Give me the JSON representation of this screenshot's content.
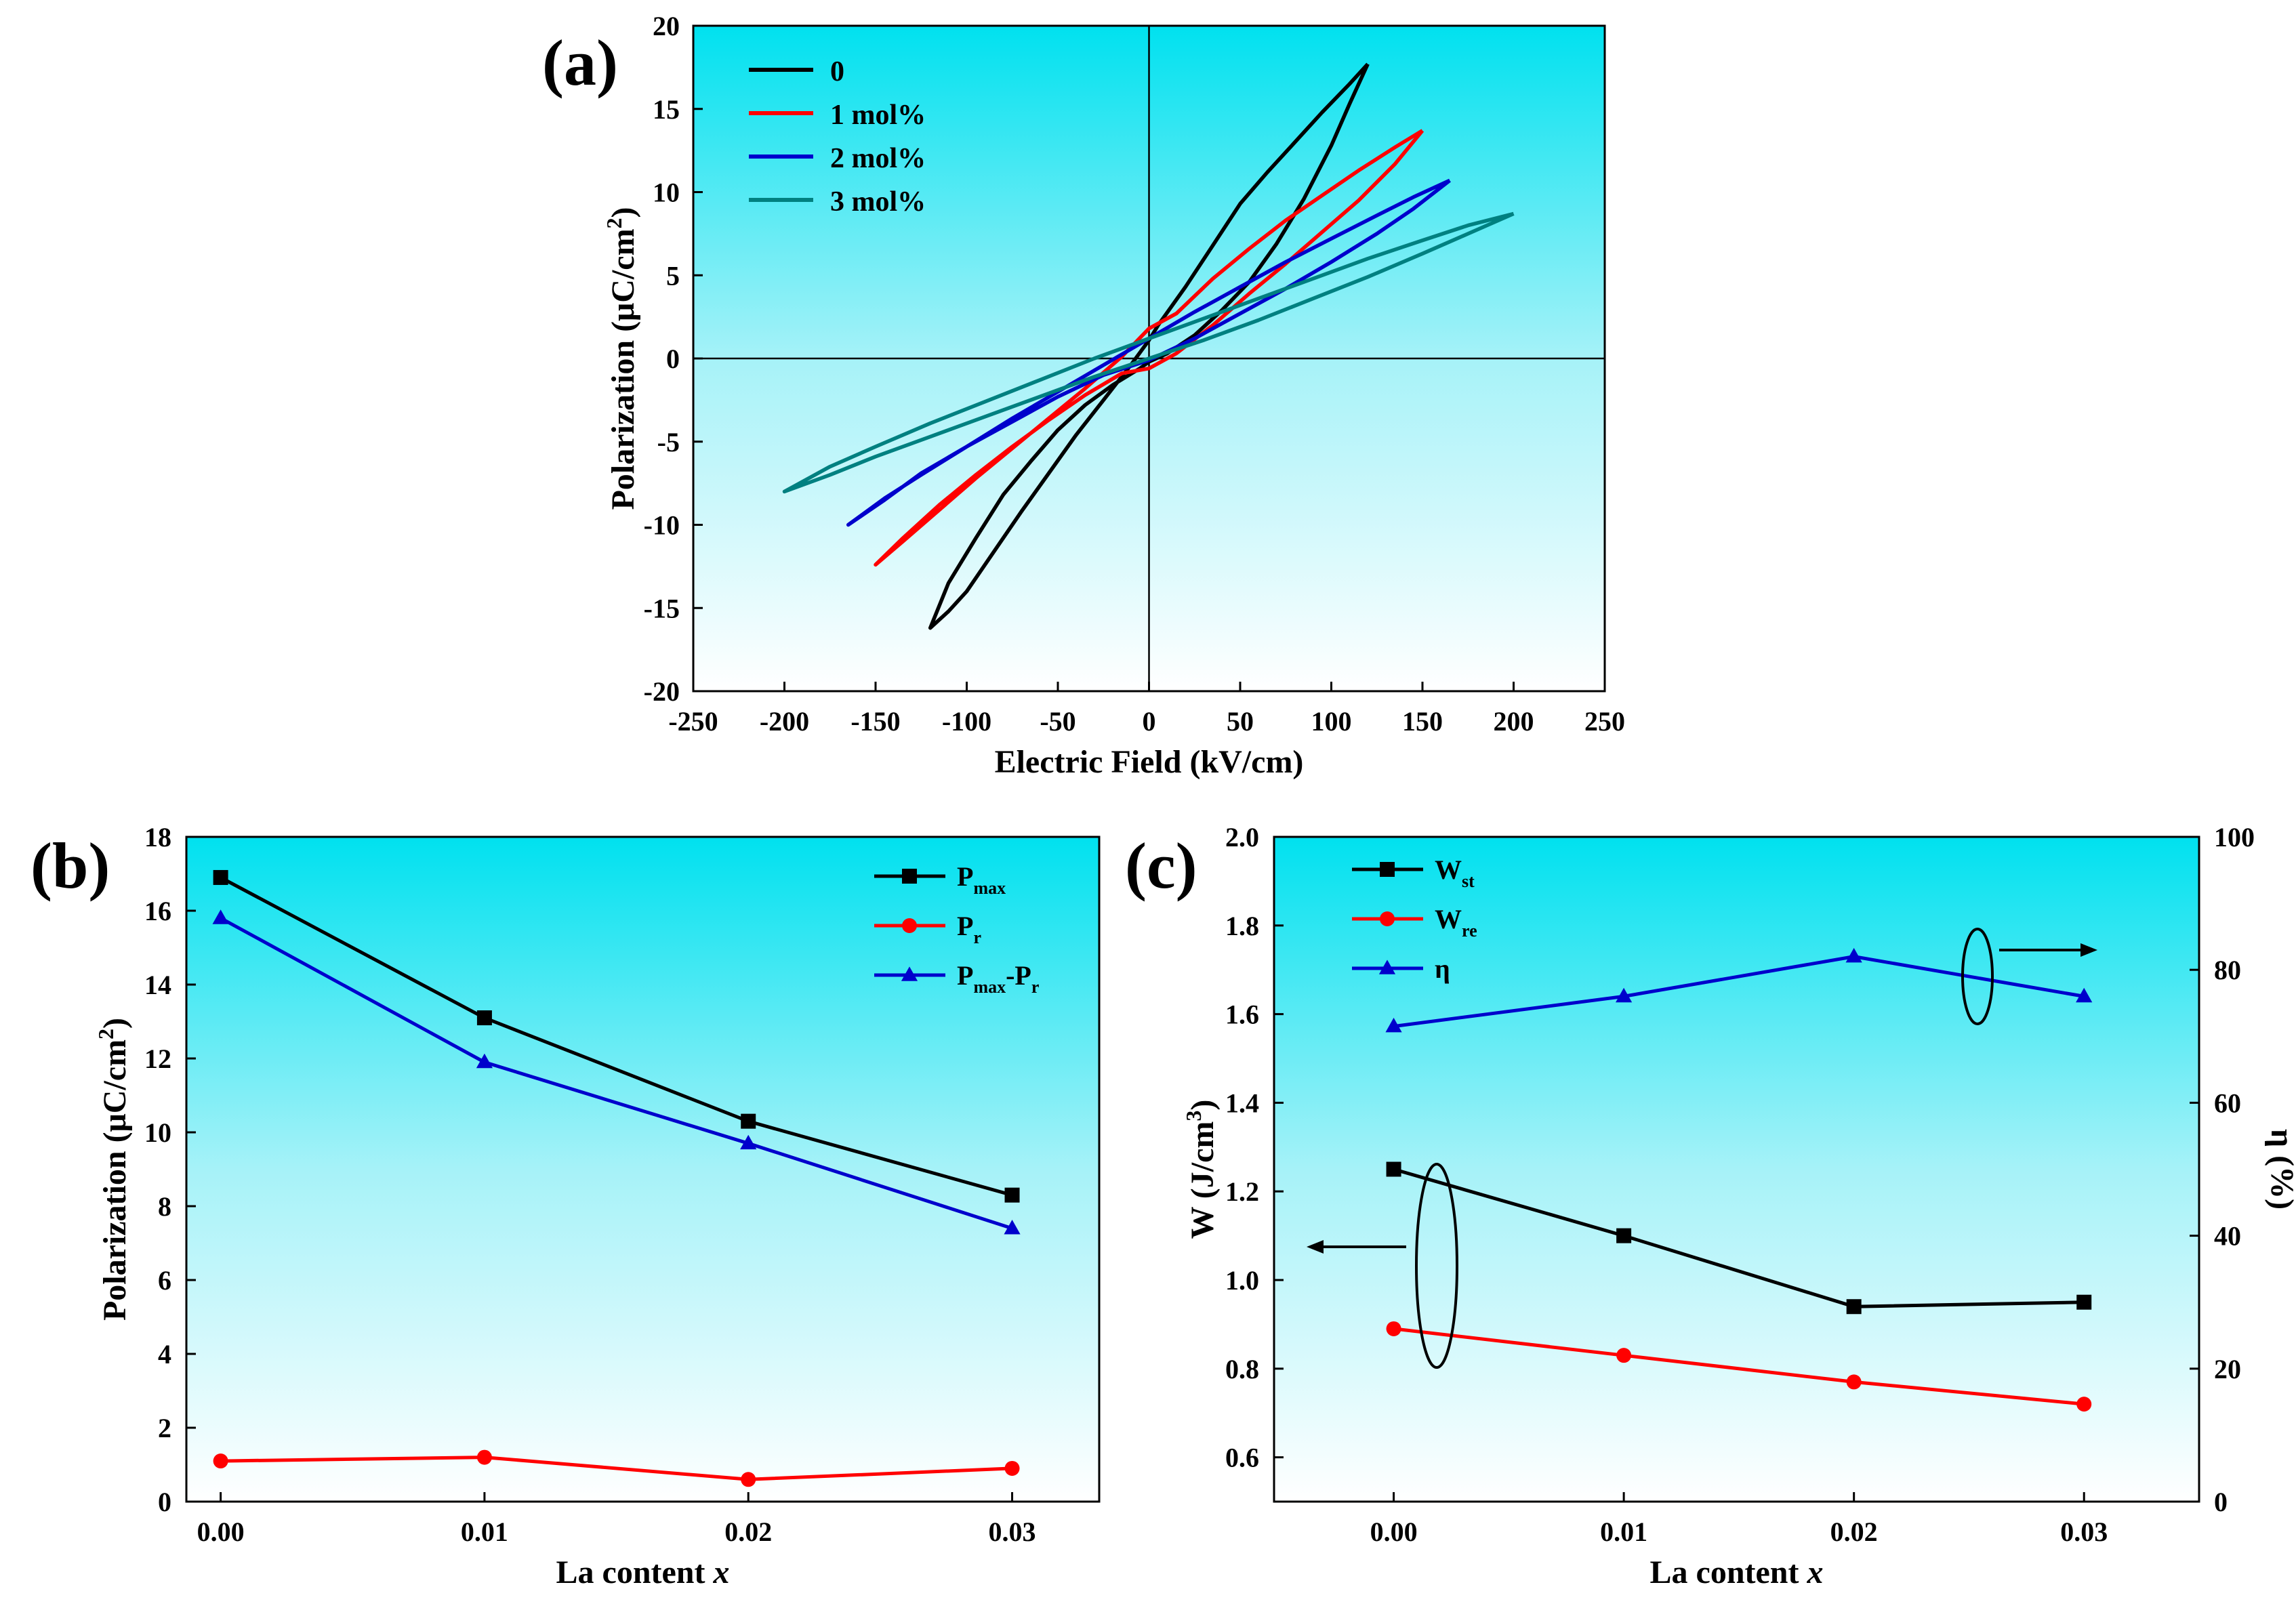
{
  "chart_data": [
    {
      "panel_label": "(a)",
      "type": "line",
      "xlabel": "Electric Field (kV/cm)",
      "ylabel": "Polarization (μC/cm²)",
      "ylabel_parts": [
        "Polarization (μC/cm",
        "2",
        ")"
      ],
      "xlim": [
        -250,
        250
      ],
      "ylim": [
        -20,
        20
      ],
      "xticks": [
        -250,
        -200,
        -150,
        -100,
        -50,
        0,
        50,
        100,
        150,
        200,
        250
      ],
      "yticks": [
        -20,
        -15,
        -10,
        -5,
        0,
        5,
        10,
        15,
        20
      ],
      "series": [
        {
          "name": "0",
          "color": "#000000",
          "emax": 120,
          "pmax": 17.7,
          "pmin": -16.2,
          "pr": 1.1,
          "x": [
            120,
            110,
            95,
            80,
            65,
            50,
            35,
            20,
            5,
            0,
            -10,
            -25,
            -40,
            -55,
            -70,
            -85,
            -100,
            -110,
            -120,
            -110,
            -95,
            -80,
            -65,
            -50,
            -35,
            -20,
            -5,
            0,
            10,
            25,
            40,
            55,
            70,
            85,
            100,
            110,
            120
          ],
          "y": [
            17.7,
            16.5,
            14.8,
            13.0,
            11.2,
            9.3,
            6.8,
            4.3,
            2.0,
            1.1,
            -0.4,
            -2.5,
            -4.6,
            -6.9,
            -9.2,
            -11.6,
            -14.0,
            -15.2,
            -16.2,
            -13.5,
            -10.8,
            -8.2,
            -6.2,
            -4.3,
            -2.8,
            -1.6,
            -0.6,
            -0.2,
            0.3,
            1.4,
            2.9,
            4.6,
            6.9,
            9.6,
            12.8,
            15.3,
            17.7
          ]
        },
        {
          "name": "1 mol%",
          "color": "#ff0000",
          "emax": 150,
          "pmax": 13.7,
          "pmin": -12.4,
          "pr": 1.2,
          "x": [
            150,
            135,
            115,
            95,
            75,
            55,
            35,
            15,
            0,
            -15,
            -35,
            -55,
            -75,
            -95,
            -115,
            -135,
            -150,
            -135,
            -115,
            -95,
            -75,
            -55,
            -35,
            -15,
            0,
            15,
            35,
            55,
            75,
            95,
            115,
            135,
            150
          ],
          "y": [
            13.7,
            12.7,
            11.3,
            9.8,
            8.3,
            6.6,
            4.8,
            2.7,
            1.8,
            0.1,
            -1.8,
            -3.6,
            -5.4,
            -7.2,
            -9.1,
            -11.0,
            -12.4,
            -10.8,
            -8.8,
            -7.0,
            -5.3,
            -3.7,
            -2.2,
            -0.9,
            -0.6,
            0.3,
            2.0,
            3.9,
            5.7,
            7.6,
            9.5,
            11.7,
            13.7
          ]
        },
        {
          "name": "2 mol%",
          "color": "#0000cc",
          "emax": 165,
          "pmax": 10.7,
          "pmin": -10.0,
          "pr": 0.7,
          "x": [
            165,
            145,
            125,
            100,
            75,
            50,
            25,
            0,
            -25,
            -50,
            -75,
            -100,
            -125,
            -145,
            -165,
            -145,
            -125,
            -100,
            -75,
            -50,
            -25,
            0,
            25,
            50,
            75,
            100,
            125,
            145,
            165
          ],
          "y": [
            10.7,
            9.7,
            8.6,
            7.2,
            5.8,
            4.3,
            2.8,
            1.2,
            -0.4,
            -2.0,
            -3.6,
            -5.3,
            -7.0,
            -8.4,
            -10.0,
            -8.5,
            -6.9,
            -5.3,
            -3.8,
            -2.3,
            -1.0,
            -0.1,
            1.2,
            2.7,
            4.2,
            5.8,
            7.5,
            9.0,
            10.7
          ]
        },
        {
          "name": "3 mol%",
          "color": "#008080",
          "emax": 200,
          "pmax": 8.7,
          "pmin": -8.0,
          "pr": 1.0,
          "x": [
            200,
            175,
            150,
            120,
            90,
            60,
            30,
            0,
            -30,
            -60,
            -90,
            -120,
            -150,
            -175,
            -200,
            -175,
            -150,
            -120,
            -90,
            -60,
            -30,
            0,
            30,
            60,
            90,
            120,
            150,
            175,
            200
          ],
          "y": [
            8.7,
            8.0,
            7.1,
            6.0,
            4.8,
            3.6,
            2.4,
            1.2,
            0.0,
            -1.3,
            -2.6,
            -3.9,
            -5.3,
            -6.5,
            -8.0,
            -7.0,
            -5.9,
            -4.7,
            -3.5,
            -2.3,
            -1.1,
            0.0,
            1.1,
            2.3,
            3.6,
            4.9,
            6.3,
            7.5,
            8.7
          ]
        }
      ]
    },
    {
      "panel_label": "(b)",
      "type": "line",
      "xlabel": "La content x",
      "xlabel_parts": [
        "La content ",
        "x"
      ],
      "ylabel": "Polarization (μC/cm²)",
      "ylabel_parts": [
        "Polarization (μC/cm",
        "2",
        ")"
      ],
      "xlim": [
        -0.0013,
        0.0333
      ],
      "ylim": [
        0,
        18
      ],
      "x": [
        0.0,
        0.01,
        0.02,
        0.03
      ],
      "xtick_labels": [
        "0.00",
        "0.01",
        "0.02",
        "0.03"
      ],
      "yticks": [
        0,
        2,
        4,
        6,
        8,
        10,
        12,
        14,
        16,
        18
      ],
      "series": [
        {
          "name": "Pmax",
          "label_main": "P",
          "label_sub": "max",
          "label_tail": "",
          "label_tail_sub": "",
          "color": "#000000",
          "marker": "square",
          "values": [
            16.9,
            13.1,
            10.3,
            8.3
          ]
        },
        {
          "name": "Pr",
          "label_main": "P",
          "label_sub": "r",
          "label_tail": "",
          "label_tail_sub": "",
          "color": "#ff0000",
          "marker": "circle",
          "values": [
            1.1,
            1.2,
            0.6,
            0.9
          ]
        },
        {
          "name": "Pmax-Pr",
          "label_main": "P",
          "label_sub": "max",
          "label_tail": "-P",
          "label_tail_sub": "r",
          "color": "#0000cc",
          "marker": "triangle",
          "values": [
            15.8,
            11.9,
            9.7,
            7.4
          ]
        }
      ]
    },
    {
      "panel_label": "(c)",
      "type": "line",
      "xlabel": "La content x",
      "xlabel_parts": [
        "La content ",
        "x"
      ],
      "ylabel": "W (J/cm³)",
      "ylabel_parts": [
        "W (J/cm",
        "3",
        ")"
      ],
      "y2label": "η (%)",
      "xlim": [
        -0.0052,
        0.035
      ],
      "ylim": [
        0.5,
        2.0
      ],
      "y2lim": [
        0,
        100
      ],
      "x": [
        0.0,
        0.01,
        0.02,
        0.03
      ],
      "xtick_labels": [
        "0.00",
        "0.01",
        "0.02",
        "0.03"
      ],
      "yticks": [
        "0.6",
        "0.8",
        "1.0",
        "1.2",
        "1.4",
        "1.6",
        "1.8",
        "2.0"
      ],
      "y2ticks": [
        0,
        20,
        40,
        60,
        80,
        100
      ],
      "series": [
        {
          "name": "Wst",
          "label_main": "W",
          "label_sub": "st",
          "axis": "left",
          "color": "#000000",
          "marker": "square",
          "values": [
            1.25,
            1.1,
            0.94,
            0.95
          ]
        },
        {
          "name": "Wre",
          "label_main": "W",
          "label_sub": "re",
          "axis": "left",
          "color": "#ff0000",
          "marker": "circle",
          "values": [
            0.89,
            0.83,
            0.77,
            0.72
          ]
        },
        {
          "name": "η",
          "label_main": "η",
          "label_sub": "",
          "axis": "right",
          "color": "#0000cc",
          "marker": "triangle",
          "values": [
            71.5,
            76.0,
            82.0,
            76.0
          ]
        }
      ]
    }
  ]
}
